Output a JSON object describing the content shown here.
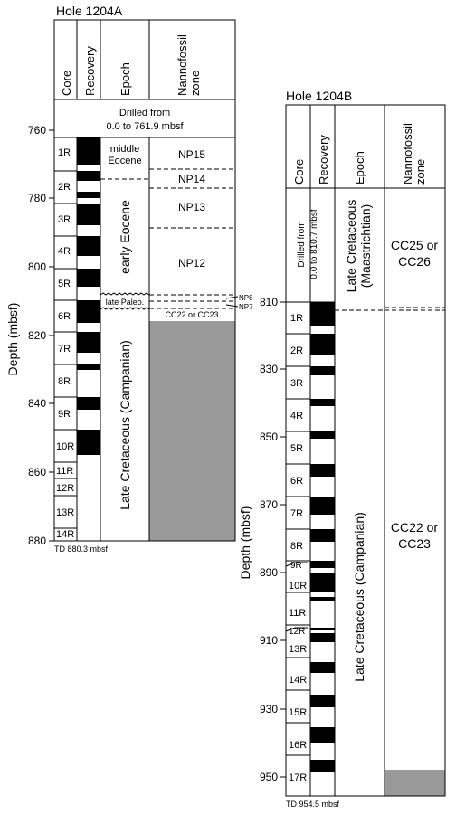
{
  "hole_a": {
    "title": "Hole 1204A",
    "headers": {
      "core": "Core",
      "recovery": "Recovery",
      "epoch": "Epoch",
      "nanno_line1": "Nannofossil",
      "nanno_line2": "zone"
    },
    "drilled_line1": "Drilled from",
    "drilled_line2": "0.0 to 761.9 mbsf",
    "depth_axis_label": "Depth (mbsf)",
    "depth_ticks": [
      "760",
      "780",
      "800",
      "820",
      "840",
      "860",
      "880"
    ],
    "td": "TD 880.3 mbsf",
    "cores": [
      "1R",
      "2R",
      "3R",
      "4R",
      "5R",
      "6R",
      "7R",
      "8R",
      "9R",
      "10R",
      "11R",
      "12R",
      "13R",
      "14R"
    ],
    "epochs": {
      "middle_eocene_1": "middle",
      "middle_eocene_2": "Eocene",
      "early_eocene": "early Eocene",
      "late_paleo": "late Paleo.",
      "late_cretaceous": "Late Cretaceous (Campanian)"
    },
    "zones": {
      "np15": "NP15",
      "np14": "NP14",
      "np13": "NP13",
      "np12": "NP12",
      "np8": "NP8",
      "np7": "NP7",
      "cc22": "CC22 or CC23"
    }
  },
  "hole_b": {
    "title": "Hole 1204B",
    "headers": {
      "core": "Core",
      "recovery": "Recovery",
      "epoch": "Epoch",
      "nanno_line1": "Nannofossil",
      "nanno_line2": "zone"
    },
    "drilled_line1": "Drilled from",
    "drilled_line2": "0.0 to 810.7 mbsf",
    "depth_axis_label": "Depth (mbsf)",
    "depth_ticks": [
      "810",
      "830",
      "850",
      "870",
      "890",
      "910",
      "930",
      "950"
    ],
    "td": "TD 954.5 mbsf",
    "cores": [
      "1R",
      "2R",
      "3R",
      "4R",
      "5R",
      "6R",
      "7R",
      "8R",
      "9R",
      "10R",
      "11R",
      "12R",
      "13R",
      "14R",
      "15R",
      "16R",
      "17R"
    ],
    "epochs": {
      "maastrichtian_1": "Late Cretaceous",
      "maastrichtian_2": "(Maastrichtian)",
      "campanian": "Late Cretaceous (Campanian)"
    },
    "zones": {
      "cc25_1": "CC25 or",
      "cc25_2": "CC26",
      "cc22_1": "CC22 or",
      "cc22_2": "CC23"
    }
  },
  "colors": {
    "recovery": "#000000",
    "no_data": "#999999",
    "background": "#ffffff"
  }
}
